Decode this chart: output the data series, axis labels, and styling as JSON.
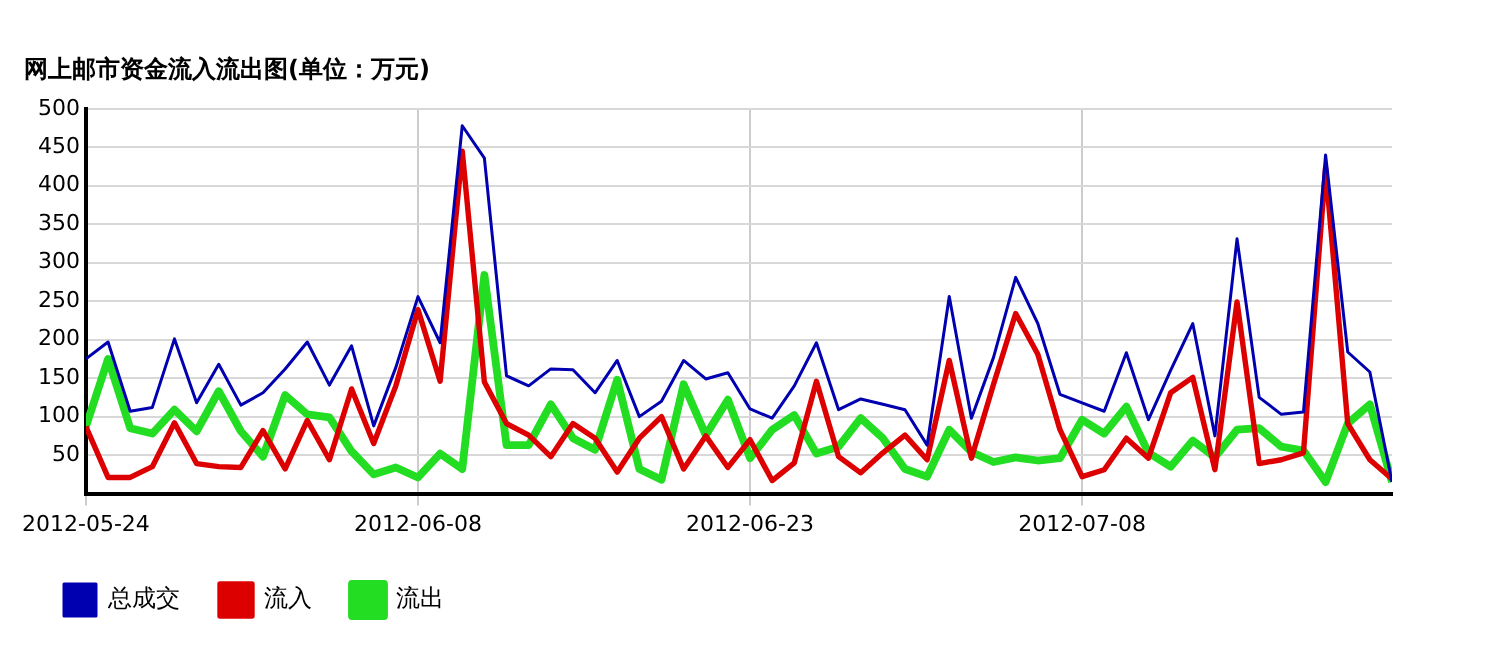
{
  "chart_data": {
    "type": "line",
    "title": "网上邮市资金流入流出图(单位：万元)",
    "x": [
      "2012-05-24",
      "2012-05-25",
      "2012-05-26",
      "2012-05-27",
      "2012-05-28",
      "2012-05-29",
      "2012-05-30",
      "2012-05-31",
      "2012-06-01",
      "2012-06-02",
      "2012-06-03",
      "2012-06-04",
      "2012-06-05",
      "2012-06-06",
      "2012-06-07",
      "2012-06-08",
      "2012-06-09",
      "2012-06-10",
      "2012-06-11",
      "2012-06-12",
      "2012-06-13",
      "2012-06-14",
      "2012-06-15",
      "2012-06-16",
      "2012-06-17",
      "2012-06-18",
      "2012-06-19",
      "2012-06-20",
      "2012-06-21",
      "2012-06-22",
      "2012-06-23",
      "2012-06-24",
      "2012-06-25",
      "2012-06-26",
      "2012-06-27",
      "2012-06-28",
      "2012-06-29",
      "2012-06-30",
      "2012-07-01",
      "2012-07-02",
      "2012-07-03",
      "2012-07-04",
      "2012-07-05",
      "2012-07-06",
      "2012-07-07",
      "2012-07-08",
      "2012-07-09",
      "2012-07-10",
      "2012-07-11",
      "2012-07-12",
      "2012-07-13",
      "2012-07-14",
      "2012-07-15",
      "2012-07-16",
      "2012-07-17",
      "2012-07-18",
      "2012-07-19",
      "2012-07-20",
      "2012-07-21",
      "2012-07-22"
    ],
    "series": [
      {
        "name": "总成交",
        "color": "#0000b0",
        "values": [
          175,
          197,
          107,
          112,
          201,
          118,
          168,
          115,
          131,
          162,
          197,
          141,
          192,
          88,
          164,
          256,
          196,
          478,
          436,
          153,
          140,
          162,
          161,
          131,
          173,
          100,
          120,
          173,
          149,
          157,
          110,
          98,
          140,
          196,
          109,
          123,
          116,
          109,
          63,
          256,
          98,
          177,
          281,
          221,
          129,
          118,
          107,
          183,
          96,
          160,
          221,
          75,
          331,
          125,
          103,
          106,
          440,
          184,
          158,
          15
        ]
      },
      {
        "name": "流入",
        "color": "#dd0000",
        "values": [
          87,
          21,
          21,
          35,
          92,
          39,
          35,
          34,
          82,
          32,
          95,
          44,
          136,
          65,
          140,
          239,
          146,
          445,
          145,
          91,
          76,
          48,
          91,
          72,
          28,
          72,
          100,
          32,
          75,
          34,
          70,
          17,
          40,
          146,
          48,
          27,
          53,
          76,
          44,
          173,
          46,
          142,
          234,
          181,
          83,
          22,
          31,
          72,
          46,
          131,
          151,
          31,
          249,
          39,
          44,
          53,
          423,
          91,
          44,
          19
        ]
      },
      {
        "name": "流出",
        "color": "#22dd22",
        "values": [
          87,
          175,
          85,
          78,
          109,
          81,
          133,
          81,
          48,
          128,
          103,
          99,
          55,
          25,
          34,
          21,
          52,
          32,
          284,
          63,
          63,
          116,
          72,
          57,
          148,
          32,
          18,
          142,
          76,
          122,
          46,
          83,
          102,
          52,
          61,
          98,
          72,
          32,
          22,
          83,
          54,
          41,
          47,
          43,
          46,
          96,
          78,
          113,
          53,
          35,
          69,
          47,
          83,
          85,
          61,
          56,
          15,
          91,
          116,
          15
        ]
      }
    ],
    "xlim": [
      "2012-05-24",
      "2012-07-22"
    ],
    "xticks": [
      {
        "value": "2012-05-24",
        "label": "2012-05-24"
      },
      {
        "value": "2012-06-08",
        "label": "2012-06-08"
      },
      {
        "value": "2012-06-23",
        "label": "2012-06-23"
      },
      {
        "value": "2012-07-08",
        "label": "2012-07-08"
      }
    ],
    "ylim": [
      0,
      500
    ],
    "yticks": [
      50,
      100,
      150,
      200,
      250,
      300,
      350,
      400,
      450,
      500
    ],
    "grid": true,
    "legend": "bottom",
    "marker": "none",
    "line_style": "solid"
  }
}
